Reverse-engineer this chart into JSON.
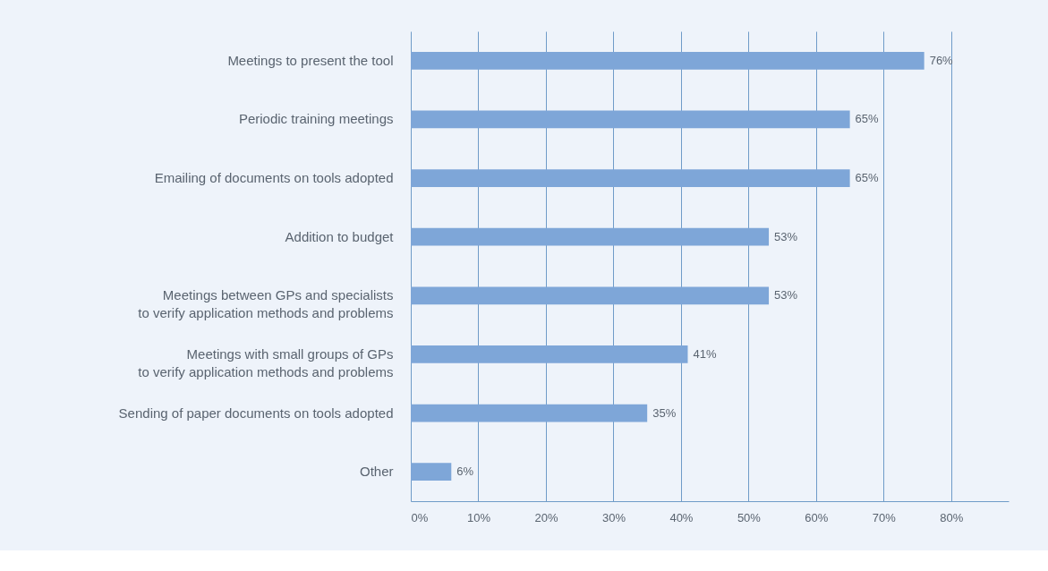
{
  "chart_data": {
    "type": "bar",
    "orientation": "horizontal",
    "categories": [
      "Meetings to present the tool",
      "Periodic training meetings",
      "Emailing of documents on tools adopted",
      "Addition to budget",
      "Meetings between GPs and specialists\nto verify application methods and problems",
      "Meetings with small groups of GPs\nto verify application methods and problems",
      "Sending of paper documents on tools adopted",
      "Other"
    ],
    "values": [
      76,
      65,
      65,
      53,
      53,
      41,
      35,
      6
    ],
    "value_labels": [
      "76%",
      "65%",
      "65%",
      "53%",
      "53%",
      "41%",
      "35%",
      "6%"
    ],
    "color": "#7ea6d8",
    "xlim": [
      0,
      88.5
    ],
    "xticks": [
      {
        "value": 0,
        "label": "0%"
      },
      {
        "value": 10,
        "label": "10%"
      },
      {
        "value": 20,
        "label": "20%"
      },
      {
        "value": 30,
        "label": "30%"
      },
      {
        "value": 40,
        "label": "40%"
      },
      {
        "value": 50,
        "label": "50%"
      },
      {
        "value": 60,
        "label": "60%"
      },
      {
        "value": 70,
        "label": "70%"
      },
      {
        "value": 80,
        "label": "80%"
      }
    ],
    "grid": "x"
  }
}
